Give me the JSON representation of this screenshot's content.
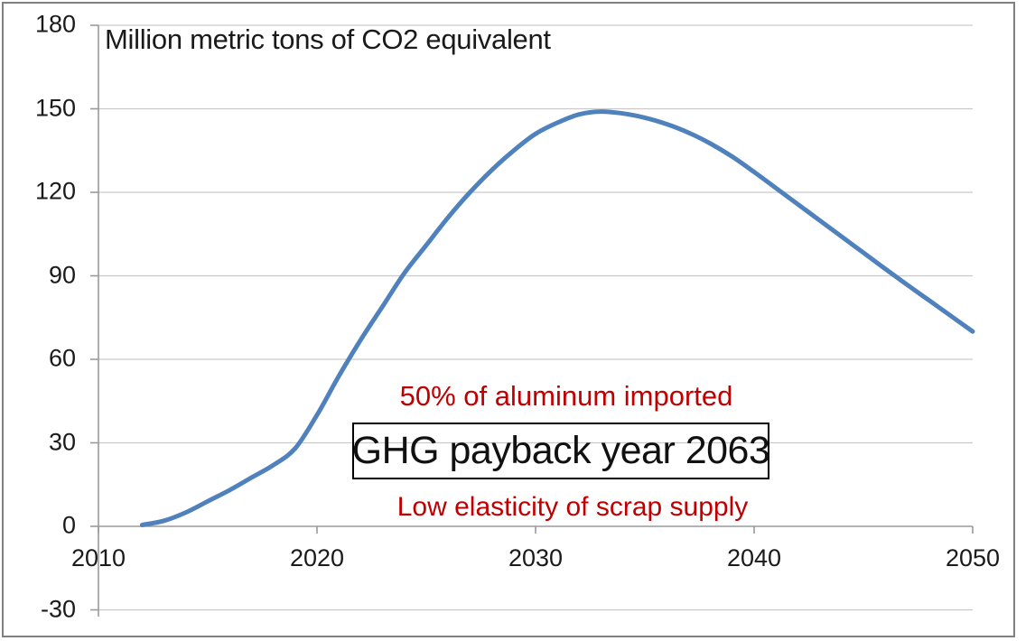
{
  "figure": {
    "title": "Million metric tons of CO2 equivalent",
    "border_color": "#808080",
    "background": "#FFFFFF"
  },
  "annotations": {
    "imported": {
      "text": "50% of aluminum imported",
      "color": "#C00000"
    },
    "payback": {
      "text": "GHG payback year 2063",
      "color": "#000000",
      "boxed": true
    },
    "elasticity": {
      "text": "Low elasticity of scrap supply",
      "color": "#C00000"
    }
  },
  "colors": {
    "line": "#4F81BD",
    "annotation_red": "#C00000",
    "gridline": "#C9C9C9",
    "axis": "#9A9A9A",
    "frame_border": "#808080",
    "text": "#1A1A1A"
  },
  "chart_data": {
    "type": "line",
    "title": "Million metric tons of CO2 equivalent",
    "xlabel": "",
    "ylabel": "Million metric tons of CO2 equivalent",
    "xlim": [
      2010,
      2050
    ],
    "ylim": [
      -30,
      180
    ],
    "x_ticks": [
      2010,
      2020,
      2030,
      2040,
      2050
    ],
    "y_ticks": [
      -30,
      0,
      30,
      60,
      90,
      120,
      150,
      180
    ],
    "grid": "horizontal",
    "legend_position": "none",
    "line_color": "#4F81BD",
    "x": [
      2012,
      2013,
      2014,
      2015,
      2016,
      2017,
      2018,
      2019,
      2020,
      2021,
      2022,
      2023,
      2024,
      2025,
      2026,
      2027,
      2028,
      2029,
      2030,
      2031,
      2032,
      2033,
      2034,
      2035,
      2036,
      2037,
      2038,
      2039,
      2040,
      2041,
      2042,
      2043,
      2044,
      2045,
      2046,
      2047,
      2048,
      2049,
      2050
    ],
    "values": [
      0.5,
      2,
      5,
      9,
      13,
      17.5,
      22,
      28,
      40,
      54,
      67,
      79,
      91,
      101,
      111,
      120,
      128,
      135,
      141,
      145,
      148,
      149,
      148.3,
      146.8,
      144.5,
      141.4,
      137.5,
      132.8,
      127.3,
      121.5,
      115.7,
      109.9,
      104.1,
      98.3,
      92.5,
      86.8,
      81.2,
      75.6,
      70
    ],
    "peak": {
      "year": 2033,
      "value": 149
    },
    "annotations_text": [
      "50% of aluminum imported",
      "GHG payback year 2063",
      "Low elasticity of scrap supply"
    ]
  }
}
